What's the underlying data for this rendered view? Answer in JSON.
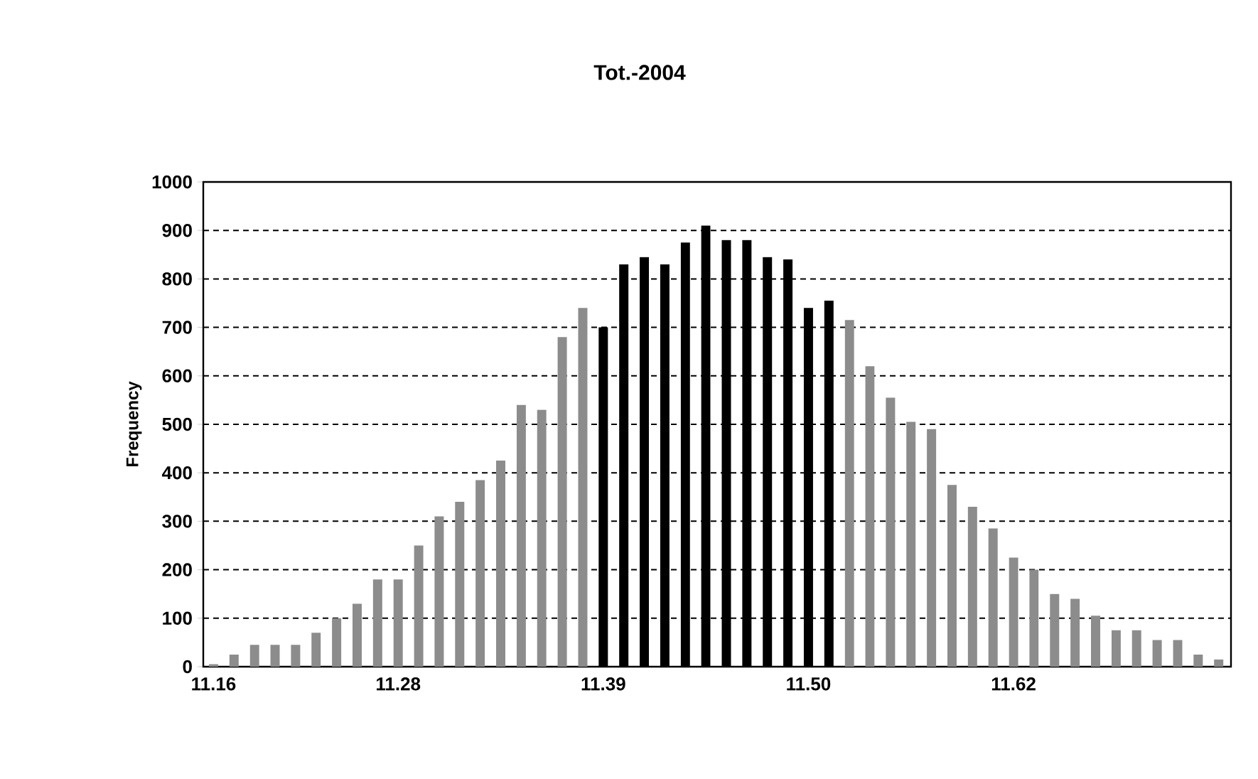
{
  "chart_data": {
    "type": "bar",
    "title": "Tot.-2004",
    "ylabel": "Frequency",
    "categories": [
      "11.16",
      null,
      null,
      null,
      null,
      null,
      null,
      null,
      null,
      "11.28",
      null,
      null,
      null,
      null,
      null,
      null,
      null,
      null,
      null,
      "11.39",
      null,
      null,
      null,
      null,
      null,
      null,
      null,
      null,
      null,
      "11.50",
      null,
      null,
      null,
      null,
      null,
      null,
      null,
      null,
      null,
      "11.62",
      null,
      null,
      null,
      null,
      null,
      null,
      null,
      null,
      null,
      null
    ],
    "values": [
      5,
      25,
      45,
      45,
      45,
      70,
      100,
      130,
      180,
      180,
      250,
      310,
      340,
      385,
      425,
      540,
      530,
      680,
      740,
      700,
      830,
      845,
      830,
      875,
      910,
      880,
      880,
      845,
      840,
      740,
      755,
      715,
      620,
      555,
      505,
      490,
      375,
      330,
      285,
      225,
      200,
      150,
      140,
      105,
      75,
      75,
      55,
      55,
      25,
      15
    ],
    "colors": [
      "#8c8c8c",
      "#8c8c8c",
      "#8c8c8c",
      "#8c8c8c",
      "#8c8c8c",
      "#8c8c8c",
      "#8c8c8c",
      "#8c8c8c",
      "#8c8c8c",
      "#8c8c8c",
      "#8c8c8c",
      "#8c8c8c",
      "#8c8c8c",
      "#8c8c8c",
      "#8c8c8c",
      "#8c8c8c",
      "#8c8c8c",
      "#8c8c8c",
      "#8c8c8c",
      "#000000",
      "#000000",
      "#000000",
      "#000000",
      "#000000",
      "#000000",
      "#000000",
      "#000000",
      "#000000",
      "#000000",
      "#000000",
      "#000000",
      "#8c8c8c",
      "#8c8c8c",
      "#8c8c8c",
      "#8c8c8c",
      "#8c8c8c",
      "#8c8c8c",
      "#8c8c8c",
      "#8c8c8c",
      "#8c8c8c",
      "#8c8c8c",
      "#8c8c8c",
      "#8c8c8c",
      "#8c8c8c",
      "#8c8c8c",
      "#8c8c8c",
      "#8c8c8c",
      "#8c8c8c",
      "#8c8c8c",
      "#8c8c8c"
    ],
    "ylim": [
      0,
      1000
    ],
    "yticks": [
      0,
      100,
      200,
      300,
      400,
      500,
      600,
      700,
      800,
      900,
      1000
    ],
    "grid": "y"
  }
}
